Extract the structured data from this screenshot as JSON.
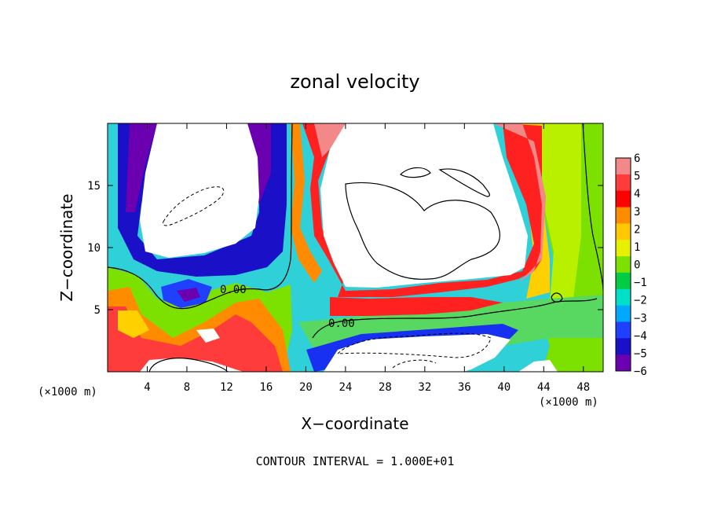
{
  "chart_data": {
    "type": "heatmap",
    "title": "zonal velocity",
    "xlabel": "X−coordinate",
    "ylabel": "Z−coordinate",
    "x_unit_left": "(×1000 m)",
    "x_unit_right": "(×1000 m)",
    "footer": "CONTOUR INTERVAL = 1.000E+01",
    "xlim": [
      0,
      50
    ],
    "ylim": [
      0,
      20
    ],
    "x_ticks": [
      "4",
      "8",
      "12",
      "16",
      "20",
      "24",
      "28",
      "32",
      "36",
      "40",
      "44",
      "48"
    ],
    "x_tick_values": [
      4,
      8,
      12,
      16,
      20,
      24,
      28,
      32,
      36,
      40,
      44,
      48
    ],
    "y_ticks": [
      "5",
      "10",
      "15"
    ],
    "y_tick_values": [
      5,
      10,
      15
    ],
    "colorbar": {
      "labels": [
        "6",
        "5",
        "4",
        "3",
        "2",
        "1",
        "0",
        "−1",
        "−2",
        "−3",
        "−4",
        "−5",
        "−6"
      ],
      "values": [
        6,
        5,
        4,
        3,
        2,
        1,
        0,
        -1,
        -2,
        -3,
        -4,
        -5,
        -6
      ],
      "colors": [
        "#f28888",
        "#ff3c3c",
        "#ff0000",
        "#ff8c00",
        "#ffc800",
        "#e6f000",
        "#7ce000",
        "#00cc44",
        "#00e0c8",
        "#00a8ff",
        "#2040ff",
        "#1a10c8",
        "#6a00b0"
      ]
    },
    "contour_labels": [
      "0.00",
      "0.00"
    ],
    "zero_contour_color": "#000000"
  }
}
